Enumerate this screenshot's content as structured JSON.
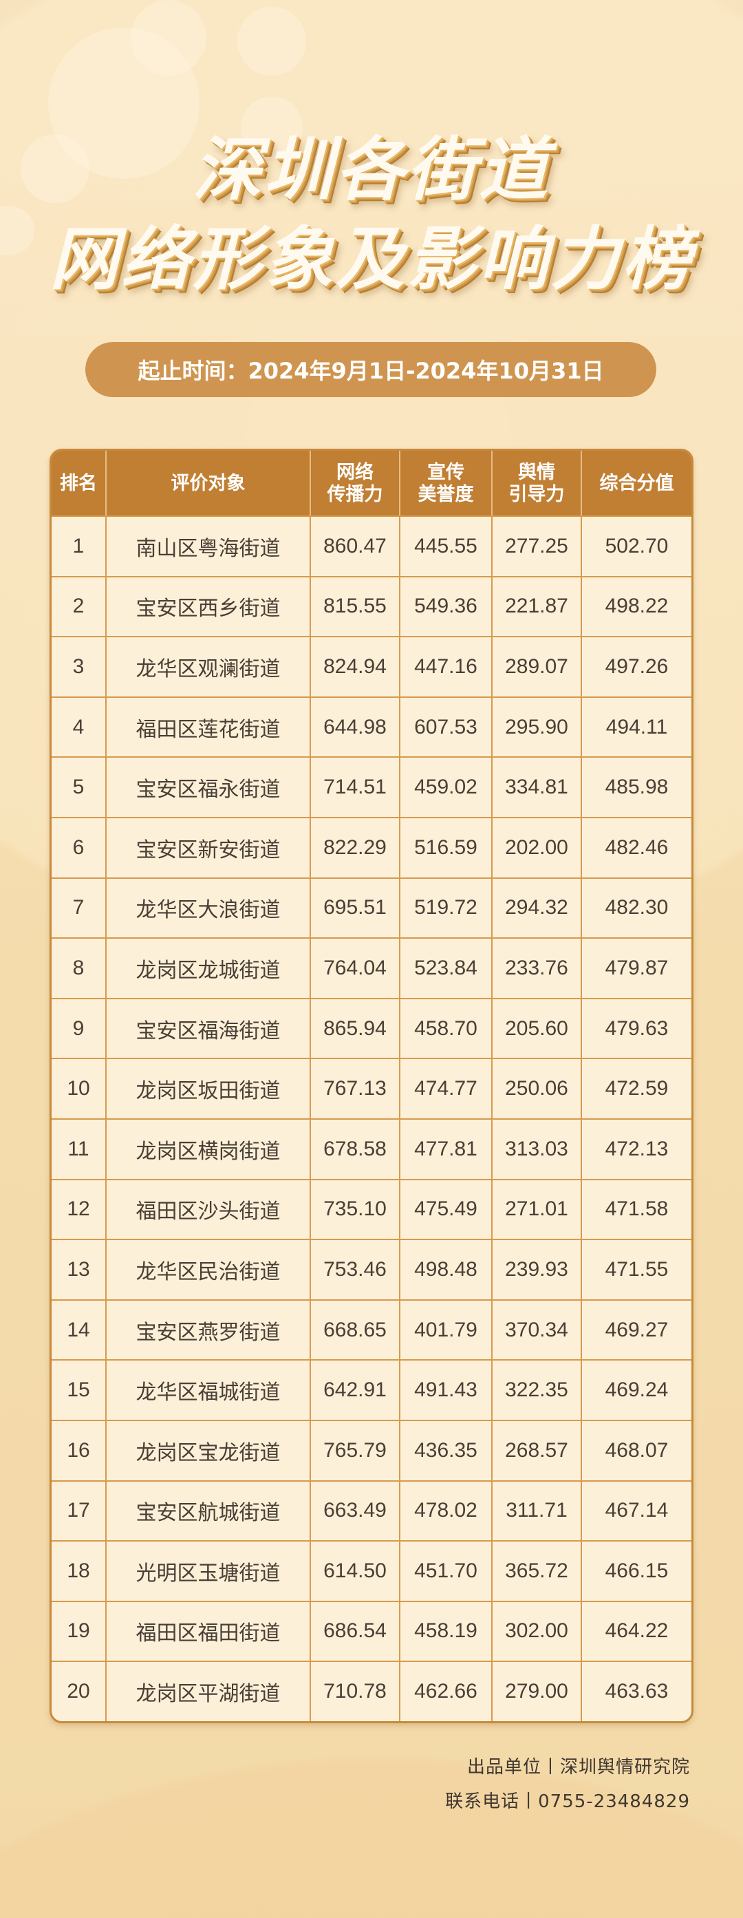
{
  "title": {
    "line1": "深圳各街道",
    "line2": "网络形象及影响力榜"
  },
  "period": "起止时间：2024年9月1日-2024年10月31日",
  "colors": {
    "header_bg": "#c17f33",
    "pill_bg": "#cf9550",
    "cell_bg": "#fdf0d8",
    "border": "#d79a4d"
  },
  "table": {
    "headers": [
      "排名",
      "评价对象",
      "网络\n传播力",
      "宣传\n美誉度",
      "舆情\n引导力",
      "综合分值"
    ],
    "rows": [
      [
        "1",
        "南山区粤海街道",
        "860.47",
        "445.55",
        "277.25",
        "502.70"
      ],
      [
        "2",
        "宝安区西乡街道",
        "815.55",
        "549.36",
        "221.87",
        "498.22"
      ],
      [
        "3",
        "龙华区观澜街道",
        "824.94",
        "447.16",
        "289.07",
        "497.26"
      ],
      [
        "4",
        "福田区莲花街道",
        "644.98",
        "607.53",
        "295.90",
        "494.11"
      ],
      [
        "5",
        "宝安区福永街道",
        "714.51",
        "459.02",
        "334.81",
        "485.98"
      ],
      [
        "6",
        "宝安区新安街道",
        "822.29",
        "516.59",
        "202.00",
        "482.46"
      ],
      [
        "7",
        "龙华区大浪街道",
        "695.51",
        "519.72",
        "294.32",
        "482.30"
      ],
      [
        "8",
        "龙岗区龙城街道",
        "764.04",
        "523.84",
        "233.76",
        "479.87"
      ],
      [
        "9",
        "宝安区福海街道",
        "865.94",
        "458.70",
        "205.60",
        "479.63"
      ],
      [
        "10",
        "龙岗区坂田街道",
        "767.13",
        "474.77",
        "250.06",
        "472.59"
      ],
      [
        "11",
        "龙岗区横岗街道",
        "678.58",
        "477.81",
        "313.03",
        "472.13"
      ],
      [
        "12",
        "福田区沙头街道",
        "735.10",
        "475.49",
        "271.01",
        "471.58"
      ],
      [
        "13",
        "龙华区民治街道",
        "753.46",
        "498.48",
        "239.93",
        "471.55"
      ],
      [
        "14",
        "宝安区燕罗街道",
        "668.65",
        "401.79",
        "370.34",
        "469.27"
      ],
      [
        "15",
        "龙华区福城街道",
        "642.91",
        "491.43",
        "322.35",
        "469.24"
      ],
      [
        "16",
        "龙岗区宝龙街道",
        "765.79",
        "436.35",
        "268.57",
        "468.07"
      ],
      [
        "17",
        "宝安区航城街道",
        "663.49",
        "478.02",
        "311.71",
        "467.14"
      ],
      [
        "18",
        "光明区玉塘街道",
        "614.50",
        "451.70",
        "365.72",
        "466.15"
      ],
      [
        "19",
        "福田区福田街道",
        "686.54",
        "458.19",
        "302.00",
        "464.22"
      ],
      [
        "20",
        "龙岗区平湖街道",
        "710.78",
        "462.66",
        "279.00",
        "463.63"
      ]
    ]
  },
  "footer": {
    "producer": "出品单位丨深圳舆情研究院",
    "phone": "联系电话丨0755-23484829"
  }
}
